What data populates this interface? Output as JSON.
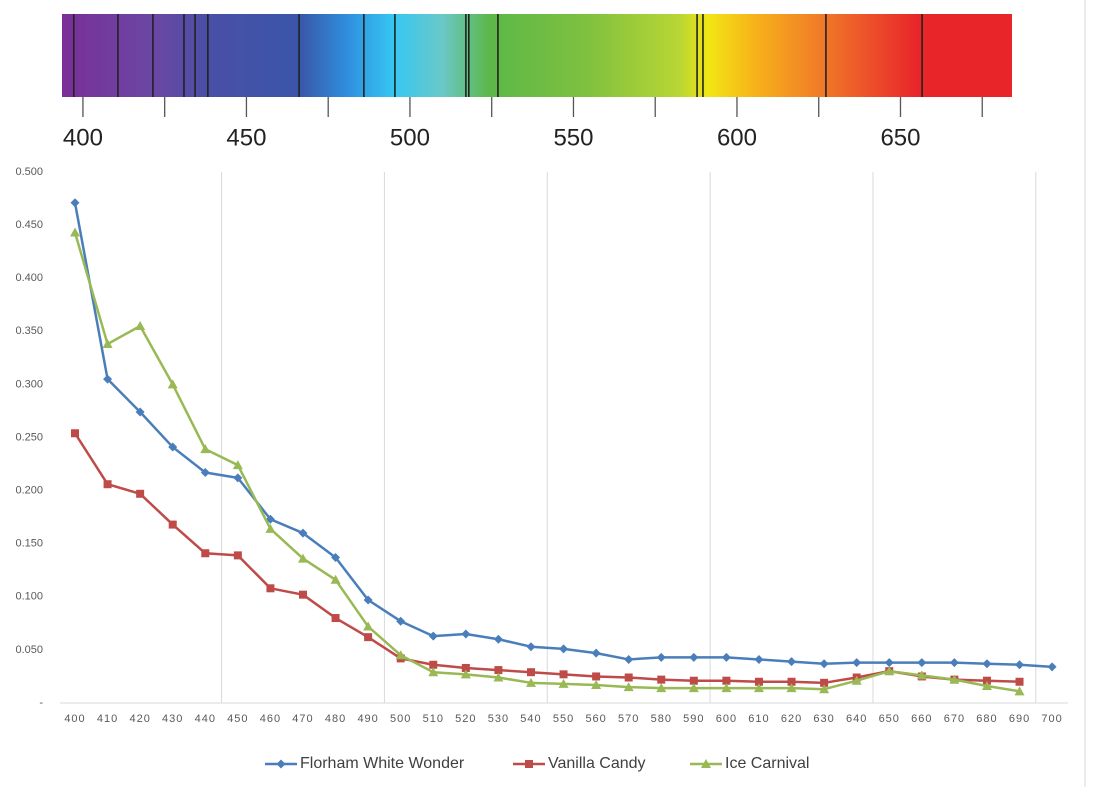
{
  "chart_data": [
    {
      "type": "spectrum",
      "xlim": [
        393.6,
        684.1
      ],
      "xticks": [
        400,
        450,
        500,
        550,
        600,
        650
      ],
      "minor_xticks": [
        425,
        475,
        525,
        575,
        625,
        675
      ],
      "lines": [
        397.2,
        410.7,
        421.4,
        430.9,
        434.3,
        438.2,
        466.1,
        485.9,
        495.4,
        517.1,
        518.0,
        526.9,
        587.8,
        589.6,
        627.2,
        656.6
      ],
      "line_color": "#222222"
    },
    {
      "type": "line",
      "categories": [
        "400",
        "410",
        "420",
        "430",
        "440",
        "450",
        "460",
        "470",
        "480",
        "490",
        "500",
        "510",
        "520",
        "530",
        "540",
        "550",
        "560",
        "570",
        "580",
        "590",
        "600",
        "610",
        "620",
        "630",
        "640",
        "650",
        "660",
        "670",
        "680",
        "690",
        "700"
      ],
      "series": [
        {
          "name": "Florham White Wonder",
          "color": "#4a7ebb",
          "marker": "diamond",
          "values": [
            0.471,
            0.305,
            0.274,
            0.241,
            0.217,
            0.212,
            0.173,
            0.16,
            0.137,
            0.097,
            0.077,
            0.063,
            0.065,
            0.06,
            0.053,
            0.051,
            0.047,
            0.041,
            0.043,
            0.043,
            0.043,
            0.041,
            0.039,
            0.037,
            0.038,
            0.038,
            0.038,
            0.038,
            0.037,
            0.036,
            0.034
          ]
        },
        {
          "name": "Vanilla Candy",
          "color": "#be4b48",
          "marker": "square",
          "values": [
            0.254,
            0.206,
            0.197,
            0.168,
            0.141,
            0.139,
            0.108,
            0.102,
            0.08,
            0.062,
            0.042,
            0.036,
            0.033,
            0.031,
            0.029,
            0.027,
            0.025,
            0.024,
            0.022,
            0.021,
            0.021,
            0.02,
            0.02,
            0.019,
            0.024,
            0.03,
            0.025,
            0.022,
            0.021,
            0.02,
            null
          ]
        },
        {
          "name": "Ice Carnival",
          "color": "#98b954",
          "marker": "triangle",
          "values": [
            0.443,
            0.338,
            0.355,
            0.3,
            0.239,
            0.224,
            0.164,
            0.136,
            0.116,
            0.072,
            0.045,
            0.029,
            0.027,
            0.024,
            0.019,
            0.018,
            0.017,
            0.015,
            0.014,
            0.014,
            0.014,
            0.014,
            0.014,
            0.013,
            0.021,
            0.03,
            0.026,
            0.022,
            0.016,
            0.011,
            null
          ]
        }
      ],
      "ylim": [
        0,
        0.5
      ],
      "yticks": [
        {
          "value": 0,
          "label": "-"
        },
        {
          "value": 0.05,
          "label": "0.050"
        },
        {
          "value": 0.1,
          "label": "0.100"
        },
        {
          "value": 0.15,
          "label": "0.150"
        },
        {
          "value": 0.2,
          "label": "0.200"
        },
        {
          "value": 0.25,
          "label": "0.250"
        },
        {
          "value": 0.3,
          "label": "0.300"
        },
        {
          "value": 0.35,
          "label": "0.350"
        },
        {
          "value": 0.4,
          "label": "0.400"
        },
        {
          "value": 0.45,
          "label": "0.450"
        },
        {
          "value": 0.5,
          "label": "0.500"
        }
      ],
      "grid": true,
      "legend": "bottom"
    }
  ]
}
